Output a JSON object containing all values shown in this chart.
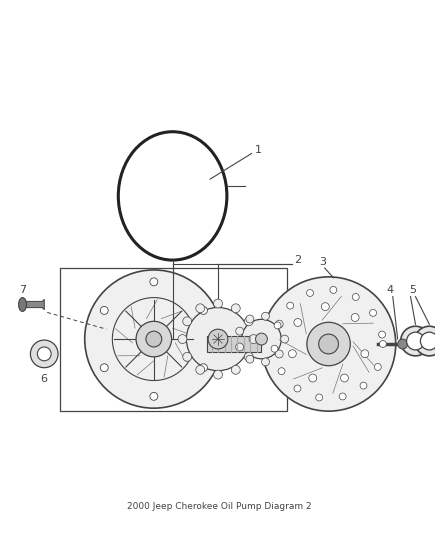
{
  "title": "2000 Jeep Cherokee Oil Pump Diagram 2",
  "background_color": "#ffffff",
  "fig_width": 4.38,
  "fig_height": 5.33,
  "dpi": 100,
  "line_color": "#444444",
  "label_fontsize": 8
}
